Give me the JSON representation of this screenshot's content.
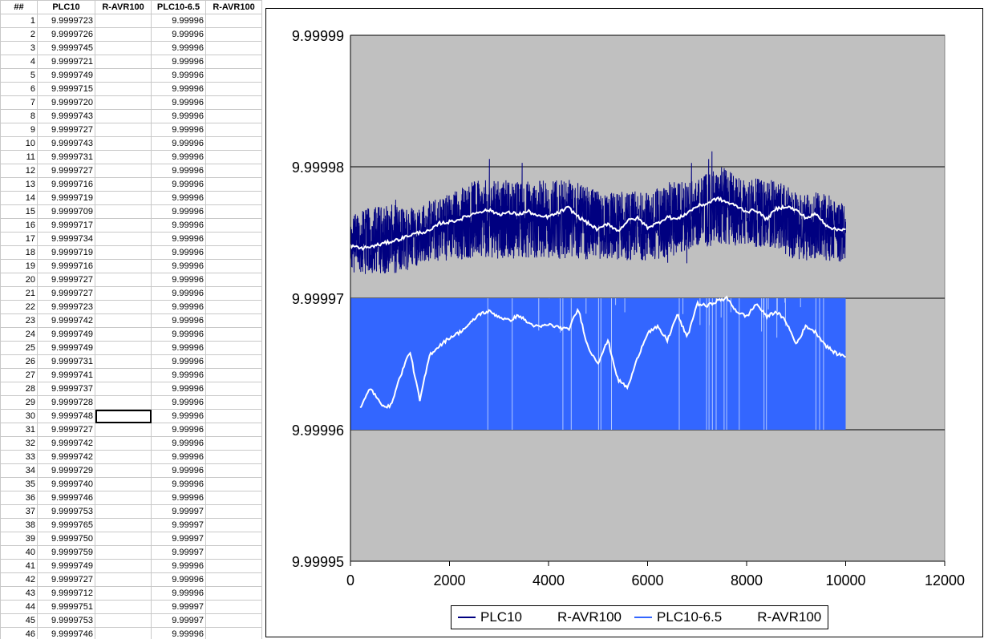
{
  "sheet": {
    "headers": [
      "##",
      "PLC10",
      "R-AVR100",
      "PLC10-6.5",
      "R-AVR100"
    ],
    "rows": [
      {
        "n": "1",
        "plc10": "9.9999723",
        "plc65": "9.99996"
      },
      {
        "n": "2",
        "plc10": "9.9999726",
        "plc65": "9.99996"
      },
      {
        "n": "3",
        "plc10": "9.9999745",
        "plc65": "9.99996"
      },
      {
        "n": "4",
        "plc10": "9.9999721",
        "plc65": "9.99996"
      },
      {
        "n": "5",
        "plc10": "9.9999749",
        "plc65": "9.99996"
      },
      {
        "n": "6",
        "plc10": "9.9999715",
        "plc65": "9.99996"
      },
      {
        "n": "7",
        "plc10": "9.9999720",
        "plc65": "9.99996"
      },
      {
        "n": "8",
        "plc10": "9.9999743",
        "plc65": "9.99996"
      },
      {
        "n": "9",
        "plc10": "9.9999727",
        "plc65": "9.99996"
      },
      {
        "n": "10",
        "plc10": "9.9999743",
        "plc65": "9.99996"
      },
      {
        "n": "11",
        "plc10": "9.9999731",
        "plc65": "9.99996"
      },
      {
        "n": "12",
        "plc10": "9.9999727",
        "plc65": "9.99996"
      },
      {
        "n": "13",
        "plc10": "9.9999716",
        "plc65": "9.99996"
      },
      {
        "n": "14",
        "plc10": "9.9999719",
        "plc65": "9.99996"
      },
      {
        "n": "15",
        "plc10": "9.9999709",
        "plc65": "9.99996"
      },
      {
        "n": "16",
        "plc10": "9.9999717",
        "plc65": "9.99996"
      },
      {
        "n": "17",
        "plc10": "9.9999734",
        "plc65": "9.99996"
      },
      {
        "n": "18",
        "plc10": "9.9999719",
        "plc65": "9.99996"
      },
      {
        "n": "19",
        "plc10": "9.9999716",
        "plc65": "9.99996"
      },
      {
        "n": "20",
        "plc10": "9.9999727",
        "plc65": "9.99996"
      },
      {
        "n": "21",
        "plc10": "9.9999727",
        "plc65": "9.99996"
      },
      {
        "n": "22",
        "plc10": "9.9999723",
        "plc65": "9.99996"
      },
      {
        "n": "23",
        "plc10": "9.9999742",
        "plc65": "9.99996"
      },
      {
        "n": "24",
        "plc10": "9.9999749",
        "plc65": "9.99996"
      },
      {
        "n": "25",
        "plc10": "9.9999749",
        "plc65": "9.99996"
      },
      {
        "n": "26",
        "plc10": "9.9999731",
        "plc65": "9.99996"
      },
      {
        "n": "27",
        "plc10": "9.9999741",
        "plc65": "9.99996"
      },
      {
        "n": "28",
        "plc10": "9.9999737",
        "plc65": "9.99996"
      },
      {
        "n": "29",
        "plc10": "9.9999728",
        "plc65": "9.99996"
      },
      {
        "n": "30",
        "plc10": "9.9999748",
        "plc65": "9.99996"
      },
      {
        "n": "31",
        "plc10": "9.9999727",
        "plc65": "9.99996"
      },
      {
        "n": "32",
        "plc10": "9.9999742",
        "plc65": "9.99996"
      },
      {
        "n": "33",
        "plc10": "9.9999742",
        "plc65": "9.99996"
      },
      {
        "n": "34",
        "plc10": "9.9999729",
        "plc65": "9.99996"
      },
      {
        "n": "35",
        "plc10": "9.9999740",
        "plc65": "9.99996"
      },
      {
        "n": "36",
        "plc10": "9.9999746",
        "plc65": "9.99996"
      },
      {
        "n": "37",
        "plc10": "9.9999753",
        "plc65": "9.99997"
      },
      {
        "n": "38",
        "plc10": "9.9999765",
        "plc65": "9.99997"
      },
      {
        "n": "39",
        "plc10": "9.9999750",
        "plc65": "9.99997"
      },
      {
        "n": "40",
        "plc10": "9.9999759",
        "plc65": "9.99997"
      },
      {
        "n": "41",
        "plc10": "9.9999749",
        "plc65": "9.99996"
      },
      {
        "n": "42",
        "plc10": "9.9999727",
        "plc65": "9.99996"
      },
      {
        "n": "43",
        "plc10": "9.9999712",
        "plc65": "9.99996"
      },
      {
        "n": "44",
        "plc10": "9.9999751",
        "plc65": "9.99997"
      },
      {
        "n": "45",
        "plc10": "9.9999753",
        "plc65": "9.99997"
      },
      {
        "n": "46",
        "plc10": "9.9999746",
        "plc65": "9.99996"
      }
    ],
    "selected_row": 30,
    "selected_col": 2
  },
  "chart_data": {
    "type": "line",
    "title": "",
    "xlabel": "",
    "ylabel": "",
    "xlim": [
      0,
      12000
    ],
    "ylim": [
      9.99995,
      9.99999
    ],
    "x_ticks": [
      0,
      2000,
      4000,
      6000,
      8000,
      10000,
      12000
    ],
    "x_tick_labels": [
      "0",
      "2000",
      "4000",
      "6000",
      "8000",
      "10000",
      "12000"
    ],
    "y_ticks": [
      9.99995,
      9.99996,
      9.99997,
      9.99998,
      9.99999
    ],
    "y_tick_labels": [
      "9.99995",
      "9.99996",
      "9.99997",
      "9.99998",
      "9.99999"
    ],
    "grid": "horizontal",
    "plot_background": "#c0c0c0",
    "legend_placement": "bottom",
    "series": [
      {
        "name": "PLC10",
        "color": "#000080",
        "style": "noisy-band",
        "x": [
          0,
          500,
          1000,
          1500,
          2000,
          2500,
          3000,
          3500,
          4000,
          4500,
          5000,
          5500,
          6000,
          6500,
          7000,
          7500,
          8000,
          8500,
          9000,
          9500,
          10000
        ],
        "y_min": [
          9.999971,
          9.999971,
          9.999971,
          9.999972,
          9.999972,
          9.999972,
          9.999972,
          9.999972,
          9.999972,
          9.999972,
          9.999972,
          9.999972,
          9.999972,
          9.999972,
          9.999973,
          9.999973,
          9.999973,
          9.999973,
          9.999972,
          9.999972,
          9.999972
        ],
        "y_max": [
          9.999977,
          9.999978,
          9.999978,
          9.999978,
          9.999979,
          9.99998,
          9.99998,
          9.99998,
          9.99998,
          9.99998,
          9.999979,
          9.999979,
          9.999979,
          9.99998,
          9.99998,
          9.999981,
          9.99998,
          9.99998,
          9.999979,
          9.999979,
          9.999978
        ]
      },
      {
        "name": "R-AVR100",
        "color": "#ffffff",
        "x": [
          0,
          200,
          400,
          600,
          800,
          1000,
          1200,
          1400,
          1600,
          1800,
          2000,
          2200,
          2400,
          2600,
          2800,
          3000,
          3200,
          3400,
          3600,
          3800,
          4000,
          4200,
          4400,
          4600,
          4800,
          5000,
          5200,
          5400,
          5600,
          5800,
          6000,
          6200,
          6400,
          6600,
          6800,
          7000,
          7200,
          7400,
          7600,
          7800,
          8000,
          8200,
          8400,
          8600,
          8800,
          9000,
          9200,
          9400,
          9600,
          9800,
          10000
        ],
        "values": [
          9.999974,
          9.9999738,
          9.9999739,
          9.9999741,
          9.9999743,
          9.9999745,
          9.9999748,
          9.999975,
          9.9999751,
          9.9999757,
          9.9999758,
          9.999976,
          9.9999763,
          9.9999766,
          9.9999767,
          9.9999764,
          9.9999765,
          9.9999764,
          9.9999766,
          9.9999762,
          9.9999762,
          9.9999765,
          9.9999769,
          9.9999762,
          9.9999757,
          9.9999752,
          9.9999757,
          9.9999751,
          9.9999759,
          9.9999761,
          9.9999754,
          9.9999757,
          9.9999762,
          9.999976,
          9.9999765,
          9.999977,
          9.9999772,
          9.9999776,
          9.9999773,
          9.999977,
          9.9999766,
          9.9999767,
          9.999976,
          9.9999768,
          9.999977,
          9.9999767,
          9.9999761,
          9.9999764,
          9.9999756,
          9.9999752,
          9.9999753
        ]
      },
      {
        "name": "PLC10-6.5",
        "color": "#3366ff",
        "style": "quantized-band",
        "x": [
          0,
          10000
        ],
        "y_low": 9.99996,
        "y_high": 9.99997
      },
      {
        "name": "R-AVR100",
        "color": "#ffffff",
        "x": [
          200,
          400,
          600,
          800,
          1000,
          1200,
          1400,
          1600,
          1800,
          2000,
          2200,
          2400,
          2600,
          2800,
          3000,
          3200,
          3400,
          3600,
          3800,
          4000,
          4200,
          4400,
          4600,
          4800,
          5000,
          5200,
          5400,
          5600,
          5800,
          6000,
          6200,
          6400,
          6600,
          6800,
          7000,
          7200,
          7400,
          7600,
          7800,
          8000,
          8200,
          8400,
          8600,
          8800,
          9000,
          9200,
          9400,
          9600,
          9800,
          10000
        ],
        "values": [
          9.9999616,
          9.9999632,
          9.999962,
          9.9999617,
          9.999964,
          9.999966,
          9.9999622,
          9.9999657,
          9.9999664,
          9.999967,
          9.9999674,
          9.999968,
          9.9999688,
          9.999969,
          9.9999686,
          9.9999683,
          9.9999687,
          9.9999681,
          9.9999678,
          9.999968,
          9.9999678,
          9.9999676,
          9.9999692,
          9.9999662,
          9.9999651,
          9.9999668,
          9.9999638,
          9.9999632,
          9.9999655,
          9.9999674,
          9.9999678,
          9.9999668,
          9.9999688,
          9.999967,
          9.9999696,
          9.9999694,
          9.9999698,
          9.99997,
          9.999969,
          9.9999686,
          9.9999696,
          9.9999686,
          9.999969,
          9.9999682,
          9.9999665,
          9.9999679,
          9.9999674,
          9.9999664,
          9.9999658,
          9.9999656
        ]
      }
    ],
    "legend": [
      {
        "label": "PLC10",
        "color": "#000080"
      },
      {
        "label": "R-AVR100",
        "color": "#ffffff"
      },
      {
        "label": "PLC10-6.5",
        "color": "#3366ff"
      },
      {
        "label": "R-AVR100",
        "color": "#ffffff"
      }
    ]
  }
}
